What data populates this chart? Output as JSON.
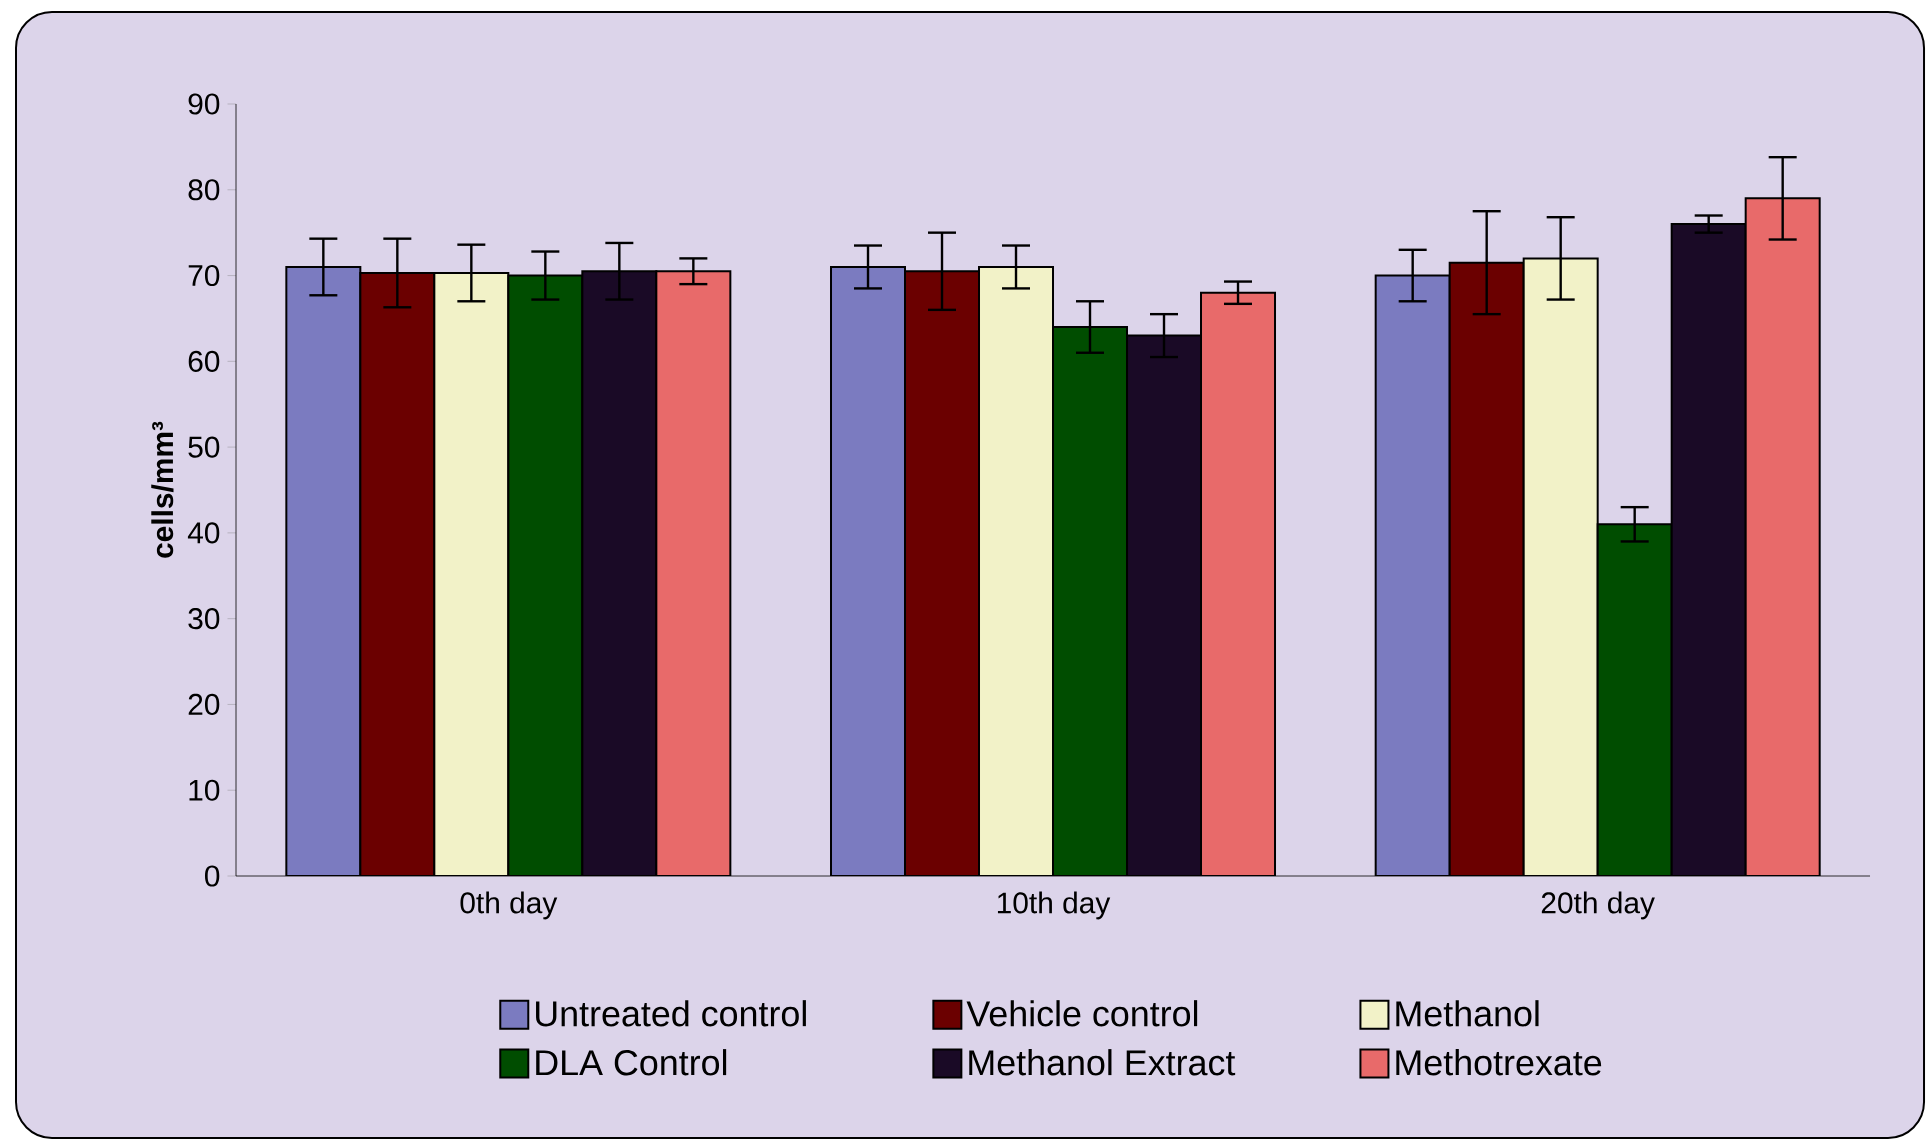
{
  "chart_data": {
    "type": "bar",
    "ylabel": "cells/mm³",
    "categories": [
      "0th day",
      "10th day",
      "20th day"
    ],
    "series": [
      {
        "name": "Untreated control",
        "color": "#7b7bc0",
        "values": [
          71,
          71,
          70
        ],
        "errors": [
          3.3,
          2.5,
          3
        ]
      },
      {
        "name": "Vehicle control",
        "color": "#6b0000",
        "values": [
          70.3,
          70.5,
          71.5
        ],
        "errors": [
          4,
          4.5,
          6
        ]
      },
      {
        "name": "Methanol",
        "color": "#f2f2c8",
        "values": [
          70.3,
          71,
          72
        ],
        "errors": [
          3.3,
          2.5,
          4.8
        ]
      },
      {
        "name": "DLA Control",
        "color": "#004d00",
        "values": [
          70,
          64,
          41
        ],
        "errors": [
          2.8,
          3,
          2
        ]
      },
      {
        "name": "Methanol Extract",
        "color": "#1a0a26",
        "values": [
          70.5,
          63,
          76
        ],
        "errors": [
          3.3,
          2.5,
          1
        ]
      },
      {
        "name": "Methotrexate",
        "color": "#e86a6a",
        "values": [
          70.5,
          68,
          79
        ],
        "errors": [
          1.5,
          1.3,
          4.8
        ]
      }
    ],
    "ylim": [
      0,
      90
    ],
    "yticks": [
      0,
      10,
      20,
      30,
      40,
      50,
      60,
      70,
      80,
      90
    ],
    "legend": "bottom",
    "grid": false
  }
}
